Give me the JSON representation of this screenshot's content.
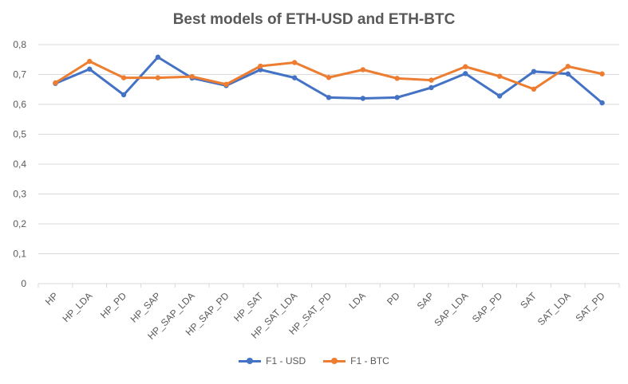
{
  "chart_data": {
    "type": "line",
    "title": "Best models of ETH-USD and ETH-BTC",
    "categories": [
      "HP",
      "HP_LDA",
      "HP_PD",
      "HP_SAP",
      "HP_SAP_LDA",
      "HP_SAP_PD",
      "HP_SAT",
      "HP_SAT_LDA",
      "HP_SAT_PD",
      "LDA",
      "PD",
      "SAP",
      "SAP_LDA",
      "SAP_PD",
      "SAT",
      "SAT_LDA",
      "SAT_PD"
    ],
    "y_ticks": [
      "0",
      "0,1",
      "0,2",
      "0,3",
      "0,4",
      "0,5",
      "0,6",
      "0,7",
      "0,8"
    ],
    "ylim": [
      0,
      0.8
    ],
    "grid": true,
    "legend_position": "bottom",
    "series": [
      {
        "name": "F1 - USD",
        "color": "#4472C4",
        "values": [
          0.67,
          0.718,
          0.632,
          0.758,
          0.688,
          0.663,
          0.716,
          0.689,
          0.623,
          0.62,
          0.623,
          0.656,
          0.703,
          0.628,
          0.71,
          0.702,
          0.605
        ]
      },
      {
        "name": "F1 - BTC",
        "color": "#ED7D31",
        "values": [
          0.672,
          0.744,
          0.689,
          0.689,
          0.693,
          0.667,
          0.728,
          0.74,
          0.69,
          0.716,
          0.687,
          0.681,
          0.726,
          0.694,
          0.651,
          0.727,
          0.702
        ]
      }
    ]
  }
}
